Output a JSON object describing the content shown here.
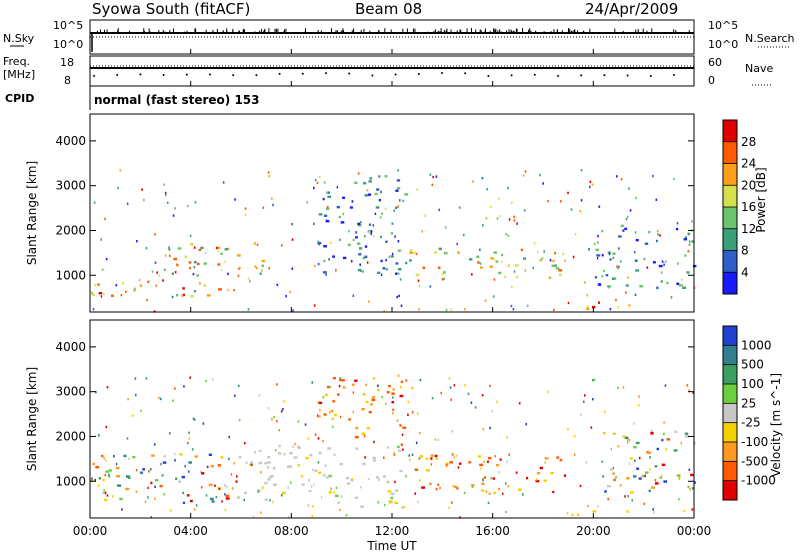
{
  "header": {
    "station": "Syowa South (fitACF)",
    "beam": "Beam 08",
    "date": "24/Apr/2009"
  },
  "nsky_panel": {
    "left_label": "N.Sky",
    "right_label": "N.Search",
    "left_ticks": [
      "10^5",
      "10^0"
    ],
    "right_ticks": [
      "10^5",
      "10^0"
    ]
  },
  "freq_panel": {
    "left_label_1": "Freq.",
    "left_label_2": "[MHz]",
    "right_label": "Nave",
    "left_ticks": [
      "18",
      "8"
    ],
    "right_ticks": [
      "60",
      "0"
    ]
  },
  "cpid": {
    "label": "CPID",
    "value": "normal (fast stereo) 153"
  },
  "chart_data": [
    {
      "type": "heatmap",
      "name": "power",
      "ylabel": "Slant Range [km]",
      "yticks": [
        "1000",
        "2000",
        "3000",
        "4000"
      ],
      "ylim": [
        180,
        4600
      ],
      "xlim": [
        0,
        24
      ],
      "colorbar": {
        "label": "Power [dB]",
        "ticks": [
          "4",
          "8",
          "12",
          "16",
          "20",
          "24",
          "28"
        ],
        "colors": [
          "#1a1aff",
          "#2e5fc7",
          "#3aa07a",
          "#6bc46b",
          "#d6e04a",
          "#ff9f1a",
          "#ff5a00",
          "#e00000"
        ]
      },
      "features": [
        {
          "t0": 0.0,
          "t1": 5.5,
          "r0": 500,
          "r1": 900,
          "level": "high"
        },
        {
          "t0": 2.5,
          "t1": 7.0,
          "r0": 900,
          "r1": 1700,
          "level": "medium"
        },
        {
          "t0": 9.0,
          "t1": 12.5,
          "r0": 1000,
          "r1": 3300,
          "level": "low"
        },
        {
          "t0": 12.5,
          "t1": 19.0,
          "r0": 900,
          "r1": 1600,
          "level": "medium"
        },
        {
          "t0": 18.5,
          "t1": 21.5,
          "r0": 200,
          "r1": 400,
          "level": "high"
        },
        {
          "t0": 20.0,
          "t1": 24.0,
          "r0": 700,
          "r1": 2100,
          "level": "low"
        }
      ]
    },
    {
      "type": "heatmap",
      "name": "velocity",
      "ylabel": "Slant Range [km]",
      "yticks": [
        "1000",
        "2000",
        "3000",
        "4000"
      ],
      "ylim": [
        180,
        4600
      ],
      "xlim": [
        0,
        24
      ],
      "colorbar": {
        "label": "Velocity [m s^-1]",
        "ticks": [
          "1000",
          "500",
          "100",
          "25",
          "-25",
          "-100",
          "-500",
          "-1000"
        ],
        "colors": [
          "#2040d0",
          "#2f7f8f",
          "#3c9f5f",
          "#6bd040",
          "#c8c8c8",
          "#f5d000",
          "#ff9a20",
          "#ff5a00",
          "#e00000"
        ]
      },
      "features": [
        {
          "t0": 0.0,
          "t1": 6.5,
          "r0": 500,
          "r1": 1600,
          "level": "mixed"
        },
        {
          "t0": 6.5,
          "t1": 12.5,
          "r0": 400,
          "r1": 1800,
          "level": "near-zero"
        },
        {
          "t0": 9.0,
          "t1": 12.5,
          "r0": 1800,
          "r1": 3300,
          "level": "negative"
        },
        {
          "t0": 12.5,
          "t1": 19.0,
          "r0": 700,
          "r1": 1600,
          "level": "negative"
        },
        {
          "t0": 18.5,
          "t1": 21.5,
          "r0": 200,
          "r1": 400,
          "level": "slight-negative"
        },
        {
          "t0": 20.0,
          "t1": 24.0,
          "r0": 700,
          "r1": 2100,
          "level": "mixed"
        }
      ]
    }
  ],
  "x_axis": {
    "label": "Time UT",
    "ticks": [
      "00:00",
      "04:00",
      "08:00",
      "12:00",
      "16:00",
      "20:00",
      "00:00"
    ]
  }
}
